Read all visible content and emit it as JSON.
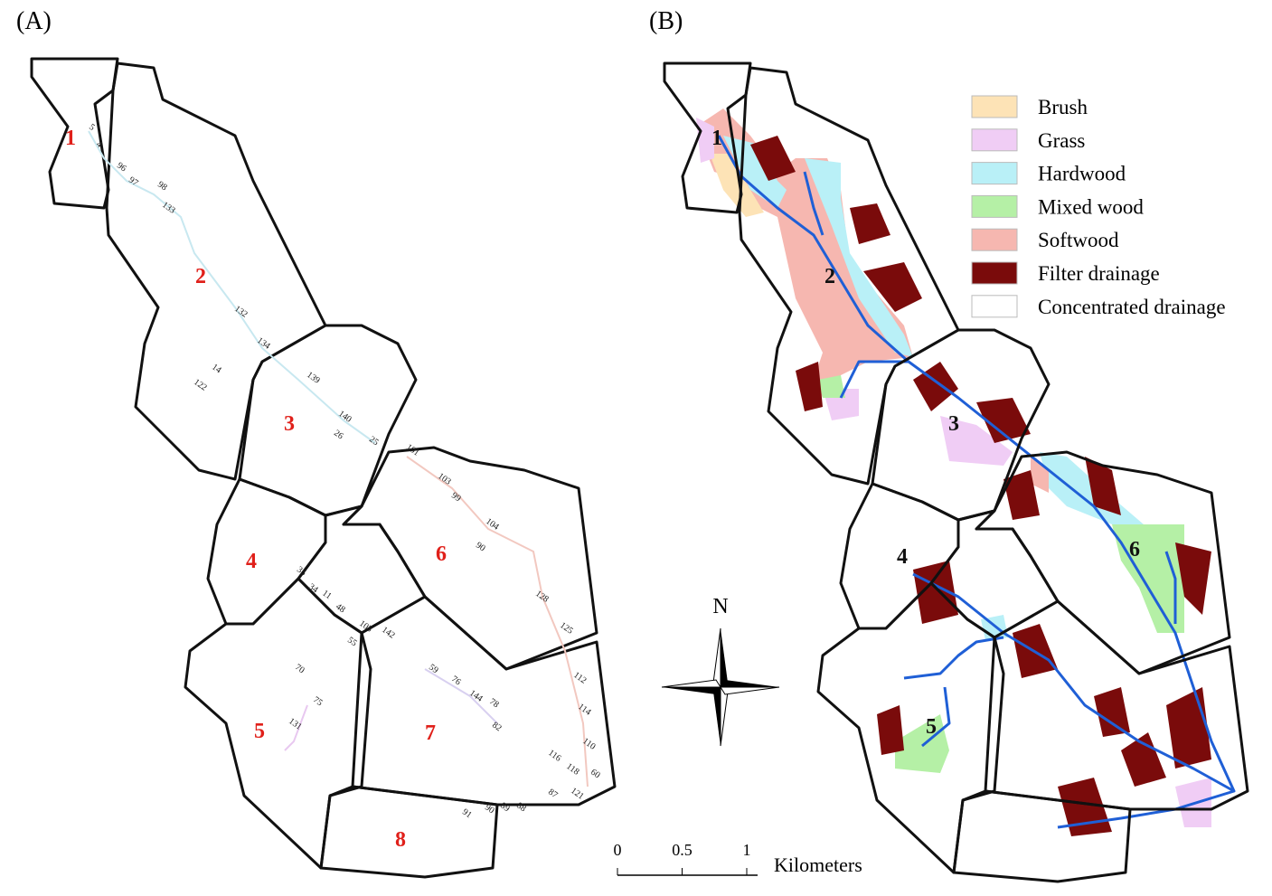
{
  "panels": [
    {
      "label": "(A)",
      "subbasins": [
        "1",
        "2",
        "3",
        "4",
        "5",
        "6",
        "7",
        "8"
      ],
      "reach_labels": [
        "5",
        "4",
        "96",
        "97",
        "98",
        "133",
        "132",
        "134",
        "14",
        "122",
        "139",
        "140",
        "26",
        "25",
        "101",
        "103",
        "99",
        "104",
        "90",
        "35",
        "34",
        "11",
        "48",
        "105",
        "142",
        "55",
        "70",
        "75",
        "131",
        "59",
        "76",
        "144",
        "78",
        "82",
        "128",
        "125",
        "112",
        "114",
        "110",
        "116",
        "118",
        "60",
        "87",
        "121",
        "91",
        "90",
        "89",
        "88"
      ]
    },
    {
      "label": "(B)",
      "subbasins": [
        "1",
        "2",
        "3",
        "4",
        "5",
        "6"
      ]
    }
  ],
  "legend": [
    {
      "label": "Brush",
      "color": "#fde3b6"
    },
    {
      "label": "Grass",
      "color": "#f0cdf5"
    },
    {
      "label": "Hardwood",
      "color": "#b9f0f7"
    },
    {
      "label": "Mixed wood",
      "color": "#b5f0a6"
    },
    {
      "label": "Softwood",
      "color": "#f6b7b0"
    },
    {
      "label": "Filter drainage",
      "color": "#7a0b0b"
    },
    {
      "label": "Concentrated drainage",
      "color": "#ffffff"
    }
  ],
  "north_arrow": "N",
  "scale_bar": {
    "ticks": [
      0,
      0.5,
      1
    ],
    "unit": "Kilometers"
  }
}
